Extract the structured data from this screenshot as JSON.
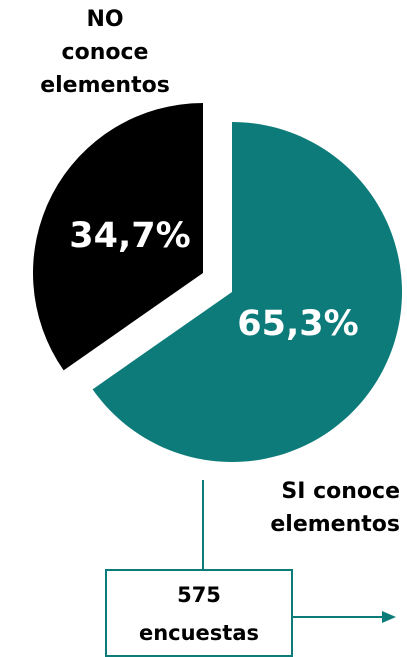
{
  "chart_data": {
    "type": "pie",
    "categories": [
      "NO conoce elementos",
      "SI conoce elementos"
    ],
    "values": [
      34.7,
      65.3
    ],
    "value_labels": [
      "34,7%",
      "65,3%"
    ],
    "colors": [
      "#000000",
      "#0e7b7b"
    ],
    "annotation": "575 encuestas"
  }
}
